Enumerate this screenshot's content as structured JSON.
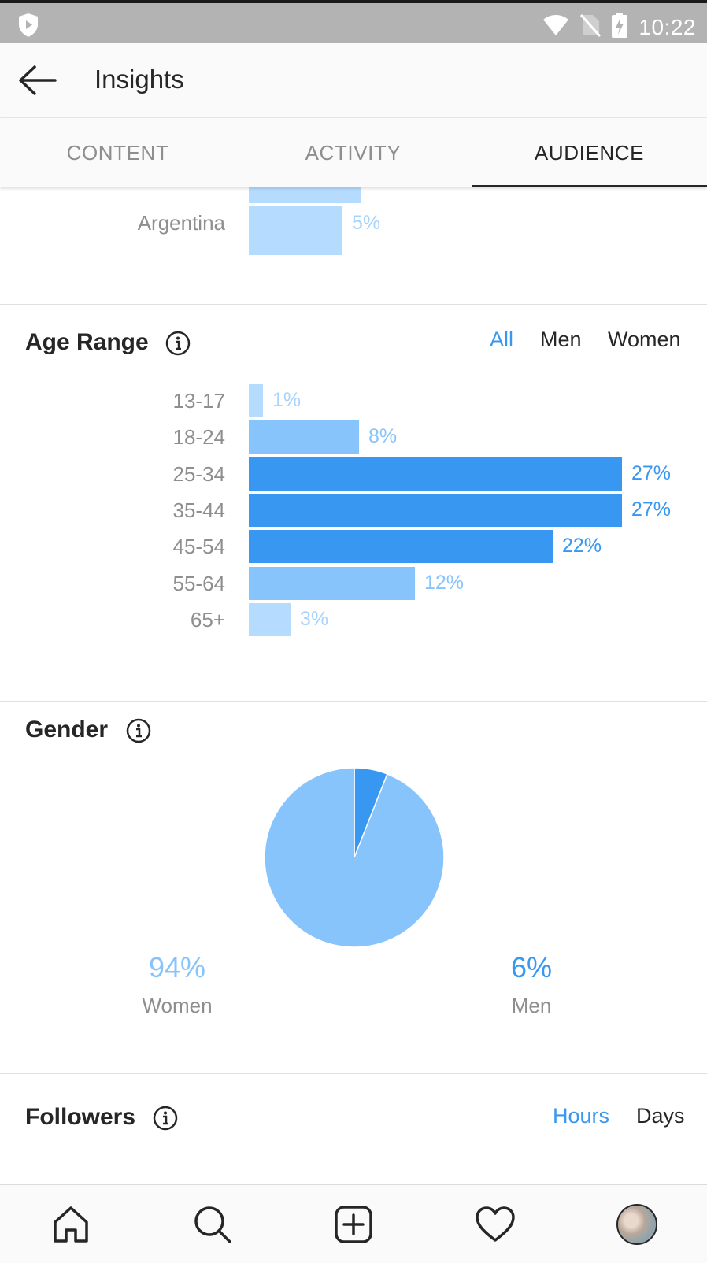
{
  "status_bar": {
    "time": "10:22"
  },
  "header": {
    "title": "Insights"
  },
  "tabs": [
    {
      "label": "CONTENT",
      "active": false
    },
    {
      "label": "ACTIVITY",
      "active": false
    },
    {
      "label": "AUDIENCE",
      "active": true
    }
  ],
  "top_locations": {
    "rows": [
      {
        "label": "Argentina",
        "value": "5%"
      }
    ]
  },
  "age_range": {
    "title": "Age Range",
    "filters": [
      {
        "label": "All",
        "active": true
      },
      {
        "label": "Men",
        "active": false
      },
      {
        "label": "Women",
        "active": false
      }
    ]
  },
  "gender": {
    "title": "Gender",
    "women": {
      "pct": "94%",
      "label": "Women"
    },
    "men": {
      "pct": "6%",
      "label": "Men"
    }
  },
  "followers": {
    "title": "Followers",
    "filters": [
      {
        "label": "Hours",
        "active": true
      },
      {
        "label": "Days",
        "active": false
      }
    ]
  },
  "colors": {
    "accent": "#3897f0",
    "bar_strong": "#3897f0",
    "bar_medium": "#88c4fc",
    "bar_light": "#b5dcff",
    "text_muted": "#8e8e8e"
  },
  "icons": {
    "status": [
      "shield-icon",
      "wifi-icon",
      "no-sim-icon",
      "battery-charging-icon"
    ],
    "nav": [
      "home-icon",
      "search-icon",
      "add-post-icon",
      "heart-icon",
      "profile-avatar"
    ]
  },
  "chart_data": [
    {
      "type": "bar",
      "orientation": "horizontal",
      "title": "Age Range",
      "categories": [
        "13-17",
        "18-24",
        "25-34",
        "35-44",
        "45-54",
        "55-64",
        "65+"
      ],
      "values": [
        1,
        8,
        27,
        27,
        22,
        12,
        3
      ],
      "value_labels": [
        "1%",
        "8%",
        "27%",
        "27%",
        "22%",
        "12%",
        "3%"
      ],
      "unit": "%"
    },
    {
      "type": "pie",
      "title": "Gender",
      "labels": [
        "Women",
        "Men"
      ],
      "values": [
        94,
        6
      ],
      "colors": [
        "#88c4fc",
        "#3897f0"
      ]
    }
  ]
}
